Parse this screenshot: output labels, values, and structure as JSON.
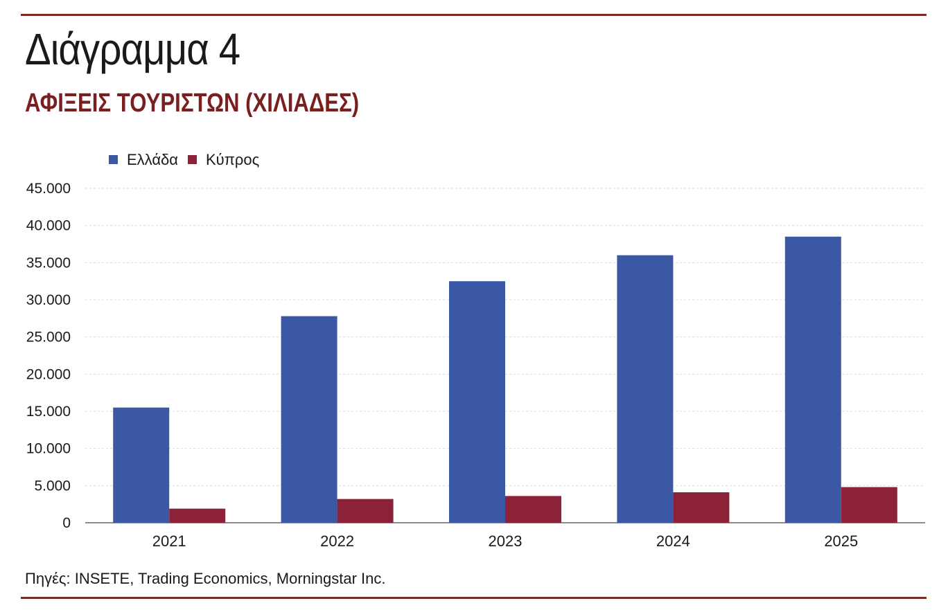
{
  "header": {
    "title": "Διάγραμμα 4",
    "subtitle": "ΑΦΙΞΕΙΣ ΤΟΥΡΙΣΤΩΝ (ΧΙΛΙΑΔΕΣ)"
  },
  "footer": {
    "source": "Πηγές: INSETE, Trading Economics, Morningstar Inc."
  },
  "chart_data": {
    "type": "bar",
    "categories": [
      "2021",
      "2022",
      "2023",
      "2024",
      "2025"
    ],
    "series": [
      {
        "name": "Ελλάδα",
        "color": "#3a58a3",
        "values": [
          15500,
          27800,
          32500,
          36000,
          38500
        ]
      },
      {
        "name": "Κύπρος",
        "color": "#8b2238",
        "values": [
          1900,
          3200,
          3600,
          4100,
          4800
        ]
      }
    ],
    "ylim": [
      0,
      45000
    ],
    "yticks": [
      0,
      5000,
      10000,
      15000,
      20000,
      25000,
      30000,
      35000,
      40000,
      45000
    ],
    "ytick_labels": [
      "0",
      "5.000",
      "10.000",
      "15.000",
      "20.000",
      "25.000",
      "30.000",
      "35.000",
      "40.000",
      "45.000"
    ],
    "grid": true,
    "legend": "top-left"
  }
}
